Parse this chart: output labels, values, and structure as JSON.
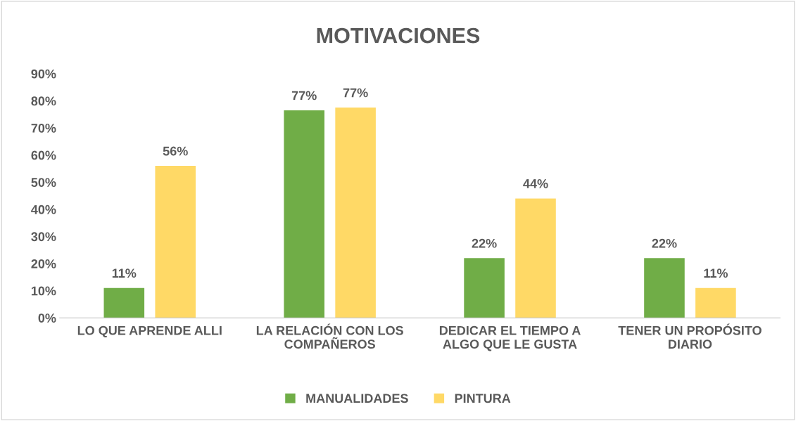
{
  "chart_data": {
    "type": "bar",
    "title": "MOTIVACIONES",
    "categories": [
      "LO QUE APRENDE ALLI",
      "LA RELACIÓN CON LOS COMPAÑEROS",
      "DEDICAR EL TIEMPO A ALGO QUE LE GUSTA",
      "TENER UN PROPÓSITO DIARIO"
    ],
    "series": [
      {
        "name": "MANUALIDADES",
        "color": "#70ad47",
        "values": [
          11,
          76.5,
          22,
          22
        ],
        "value_labels": [
          "11%",
          "77%",
          "22%",
          "22%"
        ]
      },
      {
        "name": "PINTURA",
        "color": "#ffd966",
        "values": [
          56,
          77.5,
          44,
          11
        ],
        "value_labels": [
          "56%",
          "77%",
          "44%",
          "11%"
        ]
      }
    ],
    "ylim": [
      0,
      90
    ],
    "yticks": [
      {
        "value": 0,
        "label": "0%"
      },
      {
        "value": 10,
        "label": "10%"
      },
      {
        "value": 20,
        "label": "20%"
      },
      {
        "value": 30,
        "label": "30%"
      },
      {
        "value": 40,
        "label": "40%"
      },
      {
        "value": 50,
        "label": "50%"
      },
      {
        "value": 60,
        "label": "60%"
      },
      {
        "value": 70,
        "label": "70%"
      },
      {
        "value": 80,
        "label": "80%"
      },
      {
        "value": 90,
        "label": "90%"
      }
    ],
    "grid": false,
    "legend": "bottom"
  }
}
